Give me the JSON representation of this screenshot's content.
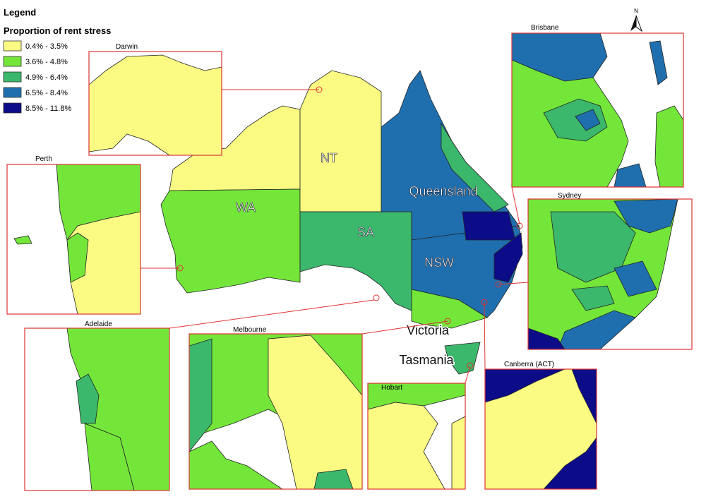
{
  "legend": {
    "title": "Legend",
    "subtitle": "Proportion of rent stress",
    "items": [
      {
        "label": "0.4% - 3.5%",
        "color": "#fbfb84"
      },
      {
        "label": "3.6% - 4.8%",
        "color": "#74e63a"
      },
      {
        "label": "4.9% - 6.4%",
        "color": "#3bb86b"
      },
      {
        "label": "6.5% - 8.4%",
        "color": "#1f6fae"
      },
      {
        "label": "8.5% - 11.8%",
        "color": "#0c0c88"
      }
    ]
  },
  "map": {
    "regions": [
      "WA",
      "NT",
      "SA",
      "Queensland",
      "NSW",
      "Victoria",
      "Tasmania"
    ],
    "north": "N"
  },
  "insets": [
    "Darwin",
    "Brisbane",
    "Perth",
    "Sydney",
    "Adelaide",
    "Melbourne",
    "Hobart",
    "Canberra (ACT)"
  ]
}
